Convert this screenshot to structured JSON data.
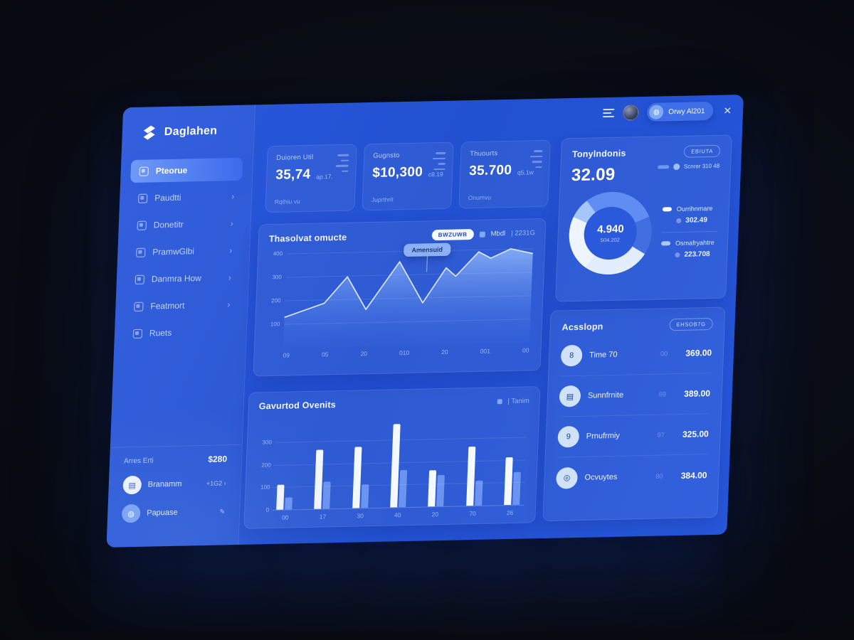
{
  "colors": {
    "accent": "#5f8df1",
    "panel": "#2254d8",
    "bar_white": "#f4f8ff",
    "bar_blue": "#6b94f2",
    "line": "#d7e6fc"
  },
  "logo": {
    "name": "Daglahen"
  },
  "header": {
    "user_pill": "Orwy Al201"
  },
  "sidebar": {
    "items": [
      {
        "label": "Pteorue",
        "active": true,
        "chevron": false
      },
      {
        "label": "Paudtti",
        "active": false,
        "chevron": true
      },
      {
        "label": "Donetitr",
        "active": false,
        "chevron": true
      },
      {
        "label": "PramwGlbi",
        "active": false,
        "chevron": true
      },
      {
        "label": "Danmra How",
        "active": false,
        "chevron": true
      },
      {
        "label": "Featmort",
        "active": false,
        "chevron": true
      },
      {
        "label": "Ruets",
        "active": false,
        "chevron": false
      }
    ],
    "footer": {
      "plan_label": "Arres Erti",
      "plan_value": "$280",
      "user_name": "Branamm",
      "user_badge": "+1G2 ›",
      "account_label": "Papuase",
      "account_badge": "✎"
    }
  },
  "stats": [
    {
      "label": "Duioren Util",
      "value": "35,74",
      "sub": "ap.17.",
      "footer": "Rqthiu vu"
    },
    {
      "label": "Gugnsto",
      "value": "$10,300",
      "sub": "c8.19",
      "footer": "Juprthrit"
    },
    {
      "label": "Thuourts",
      "value": "35.700",
      "sub": "q5.1w",
      "footer": "Onumvu"
    }
  ],
  "line_card": {
    "title": "Thasolvat omucte",
    "pill": "BWZUWB",
    "legend": "Mbdl",
    "legend2": "| 2231G",
    "tooltip": "Amensuid"
  },
  "bar_card": {
    "title": "Gavurtod Ovenits",
    "legend": "| Tanim"
  },
  "donut_card": {
    "title": "Tonylndonis",
    "pill": "EBIUTA",
    "big_value": "32.09",
    "legend_top": "Scnrer 310 48",
    "center_value": "4.940",
    "center_sub": "504.202",
    "legend": [
      {
        "label": "Ourrihnmare",
        "value": "302.49"
      },
      {
        "label": "Osmafryahtre",
        "value": "223.708"
      }
    ]
  },
  "assign_card": {
    "title": "Acsslopn",
    "pill": "EHSOB7G",
    "rows": [
      {
        "glyph": "8",
        "label": "Time 70",
        "mid": "00",
        "value": "369.00"
      },
      {
        "glyph": "▤",
        "label": "Sunnfrnite",
        "mid": "69",
        "value": "389.00"
      },
      {
        "glyph": "9",
        "label": "Prnufrmiy",
        "mid": "97",
        "value": "325.00"
      },
      {
        "glyph": "◎",
        "label": "Ocvuytes",
        "mid": "80",
        "value": "384.00"
      }
    ]
  },
  "chart_data": [
    {
      "type": "area",
      "title": "Thasolvat omucte",
      "x_ticks": [
        "09",
        "05",
        "20",
        "010",
        "20",
        "001",
        "00"
      ],
      "y_ticks": [
        "400",
        "300",
        "200",
        "100"
      ],
      "ylim": [
        0,
        400
      ],
      "legend_position": "top-right",
      "grid": true,
      "series": [
        {
          "name": "Mbdl",
          "x_pct": [
            0,
            16,
            25,
            33,
            46,
            56,
            65,
            69,
            78,
            83,
            91,
            100
          ],
          "values": [
            128,
            185,
            295,
            155,
            355,
            178,
            325,
            288,
            390,
            362,
            400,
            378
          ]
        }
      ],
      "tooltip": {
        "label": "Amensuid",
        "x_pct": 57
      }
    },
    {
      "type": "bar",
      "title": "Gavurtod Ovenits",
      "categories": [
        "00",
        "17",
        "30",
        "40",
        "20",
        "70",
        "26"
      ],
      "y_ticks": [
        "300",
        "200",
        "100",
        "0"
      ],
      "ylim": [
        0,
        400
      ],
      "grid": true,
      "series": [
        {
          "name": "white",
          "values": [
            110,
            260,
            270,
            370,
            160,
            260,
            210
          ]
        },
        {
          "name": "blue",
          "values": [
            55,
            120,
            105,
            165,
            140,
            110,
            145
          ]
        }
      ]
    },
    {
      "type": "pie",
      "title": "Tonylndonis",
      "center_value": "4.940",
      "segments": [
        {
          "label": "Ourrihnmare",
          "value": 302.49
        },
        {
          "label": "Osmafryahtre",
          "value": 223.708
        }
      ]
    }
  ]
}
